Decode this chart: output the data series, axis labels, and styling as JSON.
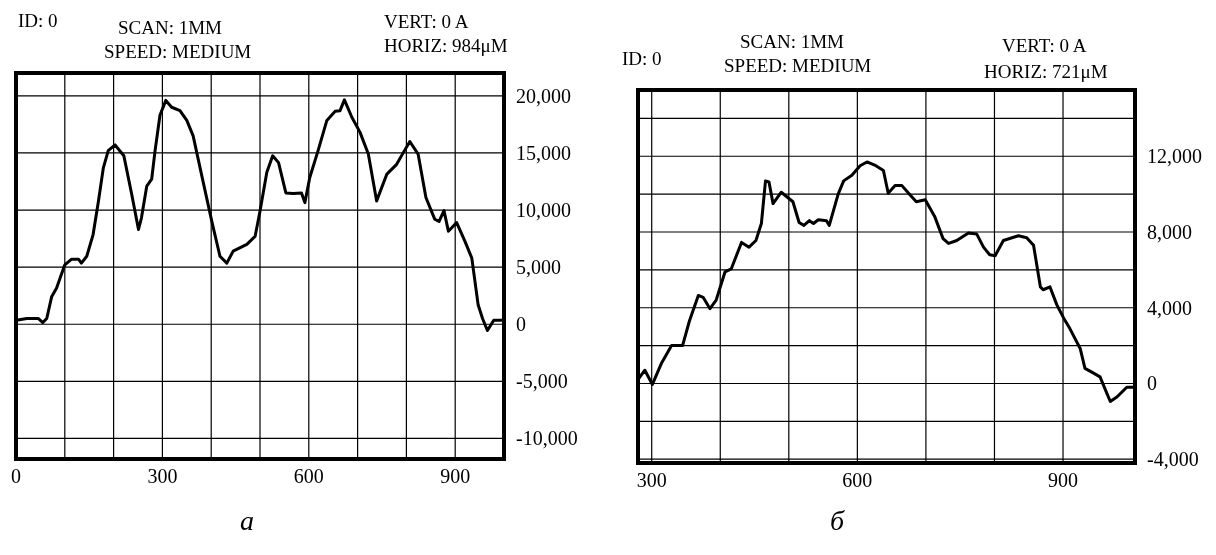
{
  "chart_data": [
    {
      "type": "line",
      "annotations": [
        "ID: 0",
        "SCAN:  1MM",
        "SPEED: MEDIUM",
        "VERT: 0 A",
        "HORIZ: 984μM",
        "а"
      ],
      "xlim": [
        0,
        1000
      ],
      "ylim": [
        -11800,
        22000
      ],
      "xticks": [
        0,
        {
          "value": 100,
          "label": null
        },
        {
          "value": 200,
          "label": null
        },
        300,
        {
          "value": 400,
          "label": null
        },
        {
          "value": 500,
          "label": null
        },
        600,
        {
          "value": 700,
          "label": null
        },
        {
          "value": 800,
          "label": null
        },
        900
      ],
      "yticks": [
        {
          "value": -10000,
          "label": "-10,000"
        },
        {
          "value": -5000,
          "label": "-5,000"
        },
        0,
        {
          "value": 5000,
          "label": "5,000"
        },
        {
          "value": 10000,
          "label": "10,000"
        },
        {
          "value": 15000,
          "label": "15,000"
        },
        {
          "value": 20000,
          "label": "20,000"
        }
      ],
      "grid": true,
      "series": [
        {
          "color": "#000000",
          "x": [
            1,
            22,
            46,
            55,
            63,
            73,
            83,
            100,
            114,
            128,
            134,
            145,
            158,
            169,
            179,
            189,
            203,
            221,
            237,
            251,
            257,
            268,
            278,
            285,
            295,
            307,
            319,
            336,
            350,
            363,
            380,
            401,
            418,
            432,
            445,
            473,
            490,
            500,
            514,
            526,
            538,
            553,
            568,
            585,
            592,
            602,
            619,
            637,
            654,
            664,
            673,
            688,
            705,
            722,
            739,
            760,
            780,
            794,
            807,
            824,
            840,
            858,
            867,
            877,
            886,
            903,
            920,
            934,
            947,
            956,
            966,
            979,
            1000
          ],
          "values": [
            350,
            500,
            500,
            150,
            500,
            2400,
            3150,
            5200,
            5700,
            5700,
            5350,
            5950,
            7850,
            10800,
            13700,
            15200,
            15700,
            14750,
            11400,
            8300,
            9300,
            12100,
            12700,
            15200,
            18300,
            19600,
            19000,
            18700,
            17850,
            16500,
            13150,
            9050,
            5950,
            5350,
            6400,
            7000,
            7700,
            9900,
            13300,
            14750,
            14150,
            11500,
            11450,
            11500,
            10650,
            12850,
            15200,
            17850,
            18650,
            18700,
            19650,
            18150,
            16800,
            14900,
            10800,
            13150,
            14000,
            15050,
            16000,
            14900,
            11100,
            9200,
            9000,
            9950,
            8150,
            8900,
            7250,
            5800,
            1700,
            500,
            -550,
            350,
            350
          ]
        }
      ]
    },
    {
      "type": "line",
      "annotations": [
        "ID: 0",
        "SCAN:  1MM",
        "SPEED: MEDIUM",
        "VERT: 0 A",
        "HORIZ: 721μM",
        "б"
      ],
      "xlim": [
        280,
        1005
      ],
      "ylim": [
        -4200,
        15500
      ],
      "xticks": [
        300,
        {
          "value": 400,
          "label": null
        },
        {
          "value": 500,
          "label": null
        },
        600,
        {
          "value": 700,
          "label": null
        },
        {
          "value": 800,
          "label": null
        },
        900
      ],
      "yticks": [
        {
          "value": -4000,
          "label": "-4,000"
        },
        {
          "value": -2000,
          "label": null
        },
        0,
        {
          "value": 2000,
          "label": null
        },
        {
          "value": 4000,
          "label": "4,000"
        },
        {
          "value": 6000,
          "label": null
        },
        {
          "value": 8000,
          "label": "8,000"
        },
        {
          "value": 10000,
          "label": null
        },
        {
          "value": 12000,
          "label": "12,000"
        },
        {
          "value": 14000,
          "label": null
        }
      ],
      "grid": true,
      "series": [
        {
          "color": "#000000",
          "x": [
            281,
            290,
            301,
            314,
            329,
            345,
            355,
            368,
            375,
            385,
            394,
            407,
            416,
            431,
            442,
            452,
            460,
            466,
            471,
            477,
            489,
            506,
            515,
            522,
            530,
            536,
            543,
            555,
            559,
            572,
            580,
            592,
            604,
            614,
            627,
            638,
            645,
            655,
            665,
            677,
            686,
            699,
            713,
            725,
            733,
            745,
            762,
            774,
            784,
            793,
            801,
            813,
            835,
            847,
            857,
            867,
            871,
            881,
            891,
            901,
            910,
            925,
            932,
            942,
            954,
            962,
            969,
            979,
            993,
            1003
          ],
          "values": [
            250,
            700,
            -50,
            1050,
            2000,
            2000,
            3300,
            4650,
            4550,
            3950,
            4400,
            5900,
            6050,
            7450,
            7200,
            7550,
            8450,
            10700,
            10650,
            9500,
            10100,
            9600,
            8500,
            8350,
            8600,
            8450,
            8650,
            8600,
            8350,
            10000,
            10700,
            11000,
            11500,
            11700,
            11500,
            11250,
            10050,
            10450,
            10450,
            9950,
            9600,
            9700,
            8800,
            7650,
            7400,
            7550,
            7950,
            7900,
            7200,
            6800,
            6750,
            7550,
            7800,
            7700,
            7300,
            5100,
            4950,
            5100,
            4150,
            3450,
            2900,
            1850,
            800,
            600,
            350,
            -350,
            -950,
            -700,
            -200,
            -200
          ]
        }
      ]
    }
  ]
}
